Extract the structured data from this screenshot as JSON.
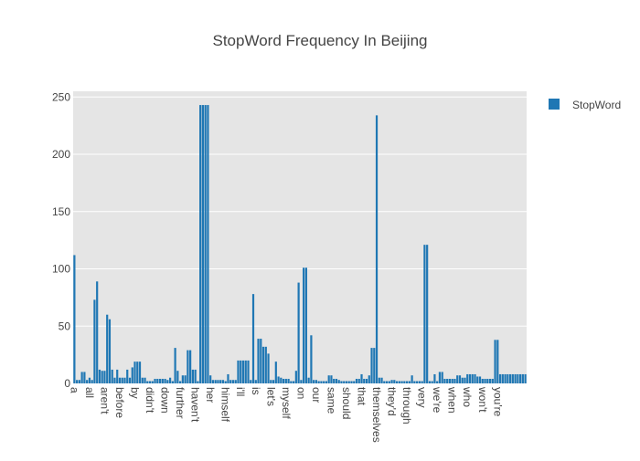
{
  "chart_data": {
    "type": "bar",
    "title": "StopWord Frequency In Beijing",
    "xlabel": "",
    "ylabel": "",
    "ylim": [
      0,
      255
    ],
    "yticks": [
      0,
      50,
      100,
      150,
      200,
      250
    ],
    "grid": true,
    "legend_position": "top-right",
    "tick_labels": [
      "a",
      "all",
      "aren't",
      "before",
      "by",
      "didn't",
      "down",
      "further",
      "haven't",
      "her",
      "himself",
      "i'll",
      "is",
      "let's",
      "myself",
      "on",
      "our",
      "same",
      "should",
      "that",
      "themselves",
      "they'd",
      "through",
      "very",
      "we're",
      "when",
      "who",
      "won't",
      "you're"
    ],
    "series": [
      {
        "name": "StopWord",
        "color": "#1f77b4",
        "values": [
          112,
          3,
          3,
          10,
          10,
          3,
          5,
          3,
          73,
          89,
          12,
          11,
          11,
          60,
          56,
          12,
          5,
          12,
          5,
          5,
          5,
          12,
          5,
          14,
          19,
          19,
          19,
          5,
          5,
          2,
          2,
          2,
          4,
          4,
          4,
          4,
          4,
          3,
          5,
          2,
          31,
          11,
          2,
          7,
          7,
          29,
          29,
          12,
          12,
          2,
          243,
          243,
          243,
          243,
          7,
          3,
          3,
          3,
          3,
          3,
          2,
          8,
          3,
          3,
          3,
          20,
          20,
          20,
          20,
          20,
          3,
          78,
          3,
          39,
          39,
          32,
          32,
          26,
          3,
          3,
          19,
          6,
          5,
          4,
          4,
          4,
          2,
          2,
          11,
          88,
          3,
          101,
          101,
          5,
          42,
          3,
          3,
          2,
          2,
          2,
          2,
          7,
          7,
          4,
          4,
          3,
          2,
          2,
          2,
          2,
          2,
          2,
          4,
          4,
          8,
          4,
          4,
          7,
          31,
          31,
          234,
          5,
          5,
          2,
          2,
          2,
          3,
          3,
          2,
          2,
          2,
          2,
          2,
          2,
          7,
          2,
          2,
          2,
          2,
          121,
          121,
          2,
          2,
          8,
          2,
          10,
          10,
          4,
          4,
          4,
          4,
          4,
          7,
          7,
          5,
          5,
          8,
          8,
          8,
          8,
          6,
          6,
          4,
          4,
          4,
          4,
          4,
          38,
          38,
          8,
          8,
          8,
          8,
          8,
          8,
          8,
          8,
          8,
          8,
          8
        ]
      }
    ]
  }
}
